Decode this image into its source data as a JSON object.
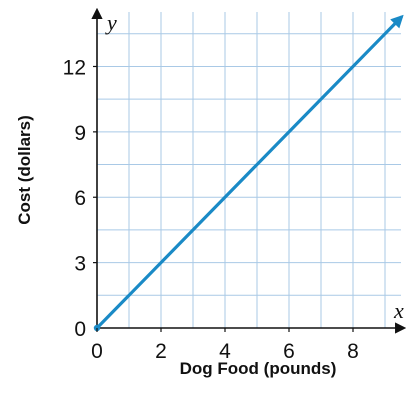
{
  "chart_data": {
    "type": "line",
    "xlabel": "Dog Food (pounds)",
    "ylabel": "Cost (dollars)",
    "x_axis_var": "x",
    "y_axis_var": "y",
    "xlim": [
      0,
      9.5
    ],
    "ylim": [
      0,
      14.5
    ],
    "x_ticks": [
      0,
      2,
      4,
      6,
      8
    ],
    "y_ticks": [
      0,
      3,
      6,
      9,
      12
    ],
    "grid": true,
    "grid_step": {
      "x": 1,
      "y": 1.5
    },
    "series": [
      {
        "x": [
          0,
          9.5
        ],
        "y": [
          0,
          14.25
        ],
        "color": "#1a8ac6",
        "arrow_end": true
      }
    ],
    "colors": {
      "grid": "#a9c9e6",
      "axis": "#111111"
    }
  }
}
